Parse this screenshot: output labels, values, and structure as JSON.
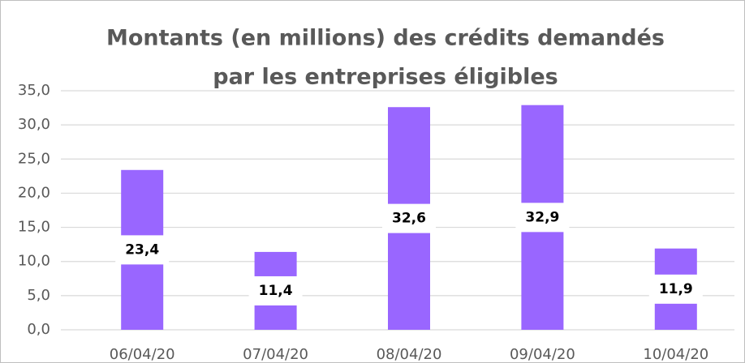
{
  "chart_data": {
    "type": "bar",
    "title": [
      "Montants (en millions) des crédits demandés",
      "par les entreprises éligibles"
    ],
    "categories": [
      "06/04/20",
      "07/04/20",
      "08/04/20",
      "09/04/20",
      "10/04/20"
    ],
    "values": [
      23.4,
      11.4,
      32.6,
      32.9,
      11.9
    ],
    "value_labels": [
      "23,4",
      "11,4",
      "32,6",
      "32,9",
      "11,9"
    ],
    "color": "#9966ff",
    "ylim": [
      0,
      35
    ],
    "yticks": [
      {
        "value": 0,
        "label": "0,0"
      },
      {
        "value": 5,
        "label": "5,0"
      },
      {
        "value": 10,
        "label": "10,0"
      },
      {
        "value": 15,
        "label": "15,0"
      },
      {
        "value": 20,
        "label": "20,0"
      },
      {
        "value": 25,
        "label": "25,0"
      },
      {
        "value": 30,
        "label": "30,0"
      },
      {
        "value": 35,
        "label": "35,0"
      }
    ],
    "grid": true
  }
}
